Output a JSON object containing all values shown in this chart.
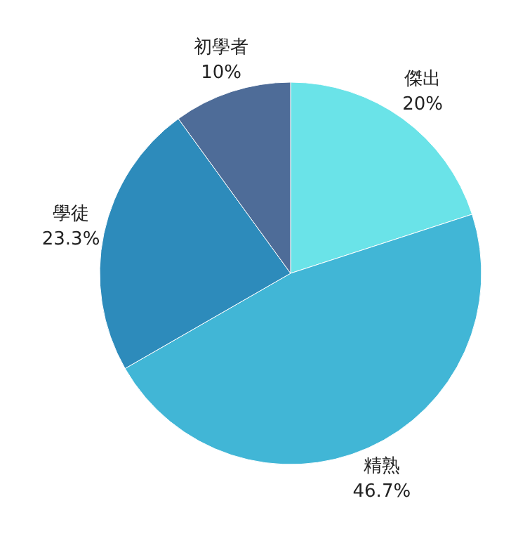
{
  "chart_data": {
    "type": "pie",
    "categories": [
      "傑出",
      "精熟",
      "學徒",
      "初學者"
    ],
    "values": [
      20,
      46.7,
      23.3,
      10
    ],
    "colors": [
      "#6ae3e8",
      "#41b6d6",
      "#2d8bbb",
      "#4e6c98"
    ],
    "value_labels": [
      "20%",
      "46.7%",
      "23.3%",
      "10%"
    ]
  }
}
